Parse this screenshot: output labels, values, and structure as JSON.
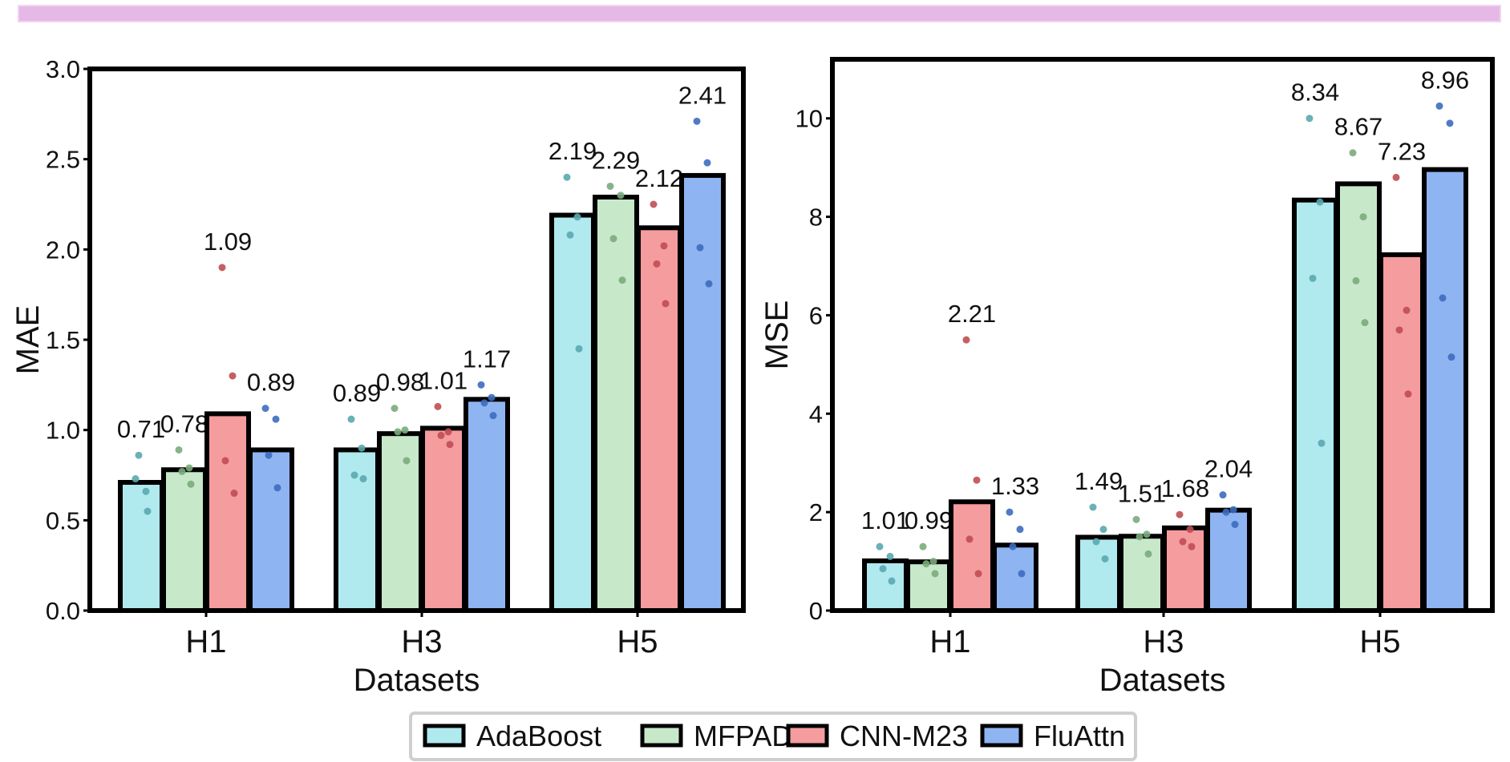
{
  "legend": [
    {
      "name": "AdaBoost",
      "color": "#b0e9ee"
    },
    {
      "name": "MFPAD",
      "color": "#c8e8ca"
    },
    {
      "name": "CNN-M23",
      "color": "#f59c9e"
    },
    {
      "name": "FluAttn",
      "color": "#8fb4f2"
    }
  ],
  "dot_colors": [
    "#5aa8b0",
    "#7aab7c",
    "#c04e52",
    "#3d6cbf"
  ],
  "chart_data": [
    {
      "type": "bar",
      "xlabel": "Datasets",
      "ylabel": "MAE",
      "ylim": [
        0,
        3.0
      ],
      "yticks": [
        "0.0",
        "0.5",
        "1.0",
        "1.5",
        "2.0",
        "2.5",
        "3.0"
      ],
      "categories": [
        "H1",
        "H3",
        "H5"
      ],
      "series": [
        {
          "name": "AdaBoost",
          "values": [
            0.71,
            0.89,
            2.19
          ],
          "labels": [
            "0.71",
            "0.89",
            "2.19"
          ],
          "points": [
            [
              0.73,
              0.66,
              0.86,
              0.55
            ],
            [
              1.06,
              0.9,
              0.75,
              0.73
            ],
            [
              2.4,
              2.18,
              2.08,
              1.45
            ]
          ]
        },
        {
          "name": "MFPAD",
          "values": [
            0.78,
            0.98,
            2.29
          ],
          "labels": [
            "0.78",
            "0.98",
            "2.29"
          ],
          "points": [
            [
              0.89,
              0.79,
              0.77,
              0.7
            ],
            [
              1.12,
              1.0,
              0.99,
              0.83
            ],
            [
              2.35,
              2.3,
              2.06,
              1.83
            ]
          ]
        },
        {
          "name": "CNN-M23",
          "values": [
            1.09,
            1.01,
            2.12
          ],
          "labels": [
            "1.09",
            "1.01",
            "2.12"
          ],
          "points": [
            [
              1.9,
              1.3,
              0.83,
              0.65
            ],
            [
              1.13,
              0.99,
              0.97,
              0.92
            ],
            [
              2.25,
              2.02,
              1.92,
              1.7
            ]
          ]
        },
        {
          "name": "FluAttn",
          "values": [
            0.89,
            1.17,
            2.41
          ],
          "labels": [
            "0.89",
            "1.17",
            "2.41"
          ],
          "points": [
            [
              1.12,
              1.06,
              0.86,
              0.68
            ],
            [
              1.25,
              1.18,
              1.15,
              1.08
            ],
            [
              2.71,
              2.48,
              2.01,
              1.81
            ]
          ]
        }
      ]
    },
    {
      "type": "bar",
      "xlabel": "Datasets",
      "ylabel": "MSE",
      "ylim": [
        0,
        11.2
      ],
      "yticks": [
        "0",
        "2",
        "4",
        "6",
        "8",
        "10"
      ],
      "categories": [
        "H1",
        "H3",
        "H5"
      ],
      "series": [
        {
          "name": "AdaBoost",
          "values": [
            1.01,
            1.49,
            8.34
          ],
          "labels": [
            "1.01",
            "1.49",
            "8.34"
          ],
          "points": [
            [
              1.3,
              1.1,
              0.85,
              0.6
            ],
            [
              2.1,
              1.65,
              1.4,
              1.05
            ],
            [
              10.0,
              8.3,
              6.75,
              3.4
            ]
          ]
        },
        {
          "name": "MFPAD",
          "values": [
            0.99,
            1.51,
            8.67
          ],
          "labels": [
            "0.99",
            "1.51",
            "8.67"
          ],
          "points": [
            [
              1.3,
              1.0,
              0.95,
              0.75
            ],
            [
              1.85,
              1.55,
              1.5,
              1.15
            ],
            [
              9.3,
              8.0,
              6.7,
              5.85
            ]
          ]
        },
        {
          "name": "CNN-M23",
          "values": [
            2.21,
            1.68,
            7.23
          ],
          "labels": [
            "2.21",
            "1.68",
            "7.23"
          ],
          "points": [
            [
              5.5,
              2.65,
              1.45,
              0.75
            ],
            [
              1.95,
              1.65,
              1.4,
              1.3
            ],
            [
              8.8,
              6.1,
              5.7,
              4.4
            ]
          ]
        },
        {
          "name": "FluAttn",
          "values": [
            1.33,
            2.04,
            8.96
          ],
          "labels": [
            "1.33",
            "2.04",
            "8.96"
          ],
          "points": [
            [
              2.0,
              1.65,
              1.3,
              0.75
            ],
            [
              2.35,
              2.05,
              2.0,
              1.75
            ],
            [
              10.25,
              9.9,
              6.35,
              5.15
            ]
          ]
        }
      ]
    }
  ]
}
